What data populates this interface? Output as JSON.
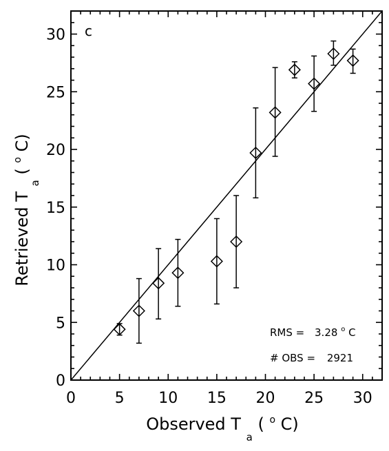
{
  "chart_data": {
    "type": "scatter",
    "title": "",
    "panel_label": "c",
    "xlabel": "Observed T",
    "xlabel_sub": "a",
    "xlabel_unit_pre": " (",
    "xlabel_unit_sup": "o",
    "xlabel_unit_post": "C)",
    "ylabel": "Retrieved T",
    "ylabel_sub": "a",
    "ylabel_unit_pre": " (",
    "ylabel_unit_sup": "o",
    "ylabel_unit_post": "C)",
    "xlim": [
      0,
      32
    ],
    "ylim": [
      0,
      32
    ],
    "x_ticks": [
      0,
      5,
      10,
      15,
      20,
      25,
      30
    ],
    "y_ticks": [
      0,
      5,
      10,
      15,
      20,
      25,
      30
    ],
    "grid": false,
    "legend": "none",
    "reference_line": {
      "type": "one-to-one",
      "from": [
        0,
        0
      ],
      "to": [
        32,
        32
      ]
    },
    "points": [
      {
        "x": 5,
        "y": 4.4,
        "low": 3.9,
        "high": 4.9
      },
      {
        "x": 7,
        "y": 6.0,
        "low": 3.2,
        "high": 8.8
      },
      {
        "x": 9,
        "y": 8.4,
        "low": 5.3,
        "high": 11.4
      },
      {
        "x": 11,
        "y": 9.3,
        "low": 6.4,
        "high": 12.2
      },
      {
        "x": 15,
        "y": 10.3,
        "low": 6.6,
        "high": 14.0
      },
      {
        "x": 17,
        "y": 12.0,
        "low": 8.0,
        "high": 16.0
      },
      {
        "x": 19,
        "y": 19.7,
        "low": 15.8,
        "high": 23.6
      },
      {
        "x": 21,
        "y": 23.2,
        "low": 19.4,
        "high": 27.1
      },
      {
        "x": 23,
        "y": 26.9,
        "low": 26.2,
        "high": 27.6
      },
      {
        "x": 25,
        "y": 25.7,
        "low": 23.3,
        "high": 28.1
      },
      {
        "x": 27,
        "y": 28.3,
        "low": 27.3,
        "high": 29.4
      },
      {
        "x": 29,
        "y": 27.7,
        "low": 26.6,
        "high": 28.7
      }
    ],
    "annotations": {
      "rms_label": "RMS =",
      "rms_value": "3.28 ",
      "rms_unit_sup": "o",
      "rms_unit": "C",
      "obs_label": "# OBS =",
      "obs_value": "2921"
    }
  }
}
